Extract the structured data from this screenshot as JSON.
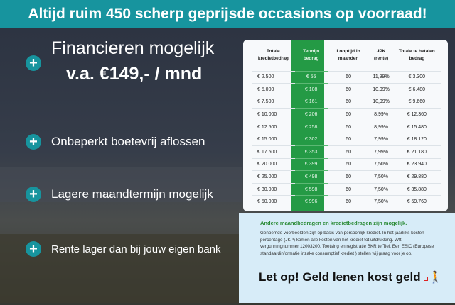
{
  "banner": "Altijd ruim 450 scherp geprijsde occasions op voorraad!",
  "headline": {
    "line1": "Financieren mogelijk",
    "line2": "v.a. €149,- / mnd"
  },
  "features": [
    "Onbeperkt boetevrij aflossen",
    "Lagere maandtermijn mogelijk",
    "Rente lager dan bij jouw eigen bank"
  ],
  "accent_color": "#17949e",
  "table": {
    "headers": [
      "Totale kredietbedrag",
      "Termijn bedrag",
      "Looptijd in maanden",
      "JPK (rente)",
      "Totale te betalen bedrag"
    ],
    "rows": [
      [
        "€ 2.500",
        "€ 55",
        "60",
        "11,99%",
        "€ 3.300"
      ],
      [
        "€ 5.000",
        "€ 108",
        "60",
        "10,99%",
        "€ 6.480"
      ],
      [
        "€ 7.500",
        "€ 161",
        "60",
        "10,99%",
        "€ 9.660"
      ],
      [
        "€ 10.000",
        "€ 206",
        "60",
        "8,99%",
        "€ 12.360"
      ],
      [
        "€ 12.500",
        "€ 258",
        "60",
        "8,99%",
        "€ 15.480"
      ],
      [
        "€ 15.000",
        "€ 302",
        "60",
        "7,99%",
        "€ 18.120"
      ],
      [
        "€ 17.500",
        "€ 353",
        "60",
        "7,99%",
        "€ 21.180"
      ],
      [
        "€ 20.000",
        "€ 399",
        "60",
        "7,50%",
        "€ 23.940"
      ],
      [
        "€ 25.000",
        "€ 498",
        "60",
        "7,50%",
        "€ 29.880"
      ],
      [
        "€ 30.000",
        "€ 598",
        "60",
        "7,50%",
        "€ 35.880"
      ],
      [
        "€ 50.000",
        "€ 996",
        "60",
        "7,50%",
        "€ 59.760"
      ]
    ]
  },
  "info": {
    "heading": "Andere maandbedragen en kredietbedragen zijn mogelijk.",
    "body": "Genoemde voorbeelden zijn op basis van persoonlijk krediet. In het jaarlijks kosten percentage (JKP) komen alle kosten van het krediet tot uitdrukking. Wft-vergunningnummer 12003200. Toetsing en registratie BKR te Tiel. Een ESIC (Europese standaardinformatie inzake consumptief krediet ) stellen wij graag voor je op.",
    "warning": "Let op! Geld lenen kost geld"
  }
}
